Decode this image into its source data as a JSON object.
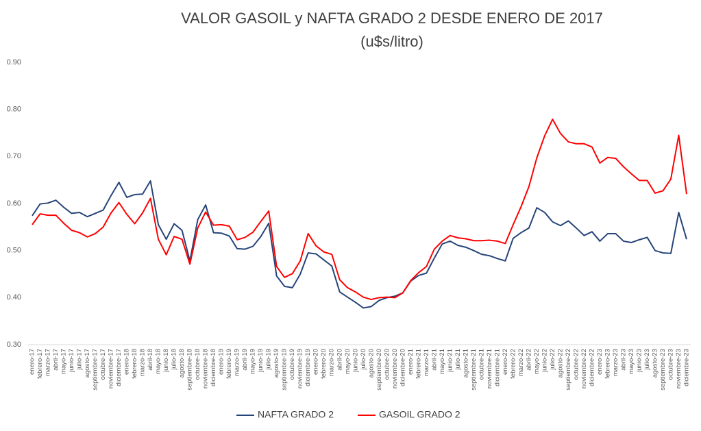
{
  "chart_data": {
    "type": "line",
    "title": "VALOR GASOIL y NAFTA GRADO 2 DESDE ENERO DE 2017",
    "subtitle": "(u$s/litro)",
    "categories": [
      "enero-17",
      "febrero-17",
      "marzo-17",
      "abril-17",
      "mayo-17",
      "junio-17",
      "julio-17",
      "agosto-17",
      "septiembre-17",
      "octubre-17",
      "noviembre-17",
      "diciembre-17",
      "enero-18",
      "febrero-18",
      "marzo-18",
      "abril-18",
      "mayo-18",
      "junio-18",
      "julio-18",
      "agosto-18",
      "septiembre-18",
      "octubre-18",
      "noviembre-18",
      "diciembre-18",
      "enero-19",
      "febrero-19",
      "marzo-19",
      "abril-19",
      "mayo-19",
      "junio-19",
      "julio-19",
      "agosto-19",
      "septiembre-19",
      "octubre-19",
      "noviembre-19",
      "diciembre-19",
      "enero-20",
      "febrero-20",
      "marzo-20",
      "abril-20",
      "mayo-20",
      "junio-20",
      "julio-20",
      "agosto-20",
      "septiembre-20",
      "octubre-20",
      "noviembre-20",
      "diciembre-20",
      "enero-21",
      "febrero-21",
      "marzo-21",
      "abril-21",
      "mayo-21",
      "junio-21",
      "julio-21",
      "agosto-21",
      "septiembre-21",
      "octubre-21",
      "noviembre-21",
      "diciembre-21",
      "enero-22",
      "febrero-22",
      "marzo-22",
      "abril-22",
      "mayo-22",
      "junio-22",
      "julio-22",
      "agosto-22",
      "septiembre-22",
      "octubre-22",
      "noviembre-22",
      "diciembre-22",
      "enero-23",
      "febrero-23",
      "marzo-23",
      "abril-23",
      "mayo-23",
      "junio-23",
      "julio-23",
      "agosto-23",
      "septiembre-23",
      "octubre-23",
      "noviembre-23",
      "diciembre-23"
    ],
    "series": [
      {
        "name": "NAFTA GRADO 2",
        "color": "#264478",
        "values": [
          0.574,
          0.599,
          0.601,
          0.607,
          0.592,
          0.579,
          0.581,
          0.572,
          0.579,
          0.586,
          0.617,
          0.645,
          0.613,
          0.619,
          0.62,
          0.648,
          0.555,
          0.524,
          0.557,
          0.543,
          0.478,
          0.566,
          0.597,
          0.538,
          0.537,
          0.531,
          0.504,
          0.503,
          0.509,
          0.53,
          0.558,
          0.446,
          0.424,
          0.421,
          0.45,
          0.495,
          0.493,
          0.48,
          0.467,
          0.412,
          0.401,
          0.39,
          0.378,
          0.381,
          0.394,
          0.4,
          0.403,
          0.41,
          0.435,
          0.447,
          0.452,
          0.484,
          0.514,
          0.52,
          0.511,
          0.507,
          0.5,
          0.492,
          0.489,
          0.483,
          0.478,
          0.526,
          0.538,
          0.548,
          0.591,
          0.581,
          0.561,
          0.553,
          0.563,
          0.548,
          0.532,
          0.54,
          0.52,
          0.536,
          0.536,
          0.52,
          0.517,
          0.523,
          0.528,
          0.5,
          0.495,
          0.494,
          0.581,
          0.524
        ]
      },
      {
        "name": "GASOIL GRADO 2",
        "color": "#ff0000",
        "values": [
          0.555,
          0.578,
          0.575,
          0.575,
          0.558,
          0.543,
          0.538,
          0.529,
          0.536,
          0.55,
          0.58,
          0.602,
          0.577,
          0.557,
          0.58,
          0.611,
          0.524,
          0.491,
          0.53,
          0.524,
          0.471,
          0.548,
          0.582,
          0.554,
          0.555,
          0.552,
          0.523,
          0.528,
          0.539,
          0.562,
          0.584,
          0.466,
          0.443,
          0.451,
          0.478,
          0.536,
          0.51,
          0.497,
          0.492,
          0.438,
          0.421,
          0.412,
          0.401,
          0.396,
          0.4,
          0.401,
          0.4,
          0.41,
          0.436,
          0.453,
          0.466,
          0.503,
          0.52,
          0.532,
          0.527,
          0.525,
          0.521,
          0.521,
          0.522,
          0.52,
          0.515,
          0.555,
          0.593,
          0.636,
          0.697,
          0.744,
          0.779,
          0.749,
          0.731,
          0.727,
          0.727,
          0.72,
          0.686,
          0.698,
          0.696,
          0.678,
          0.663,
          0.649,
          0.649,
          0.622,
          0.627,
          0.652,
          0.745,
          0.62
        ]
      }
    ],
    "ylim": [
      0.3,
      0.9
    ],
    "yticks": [
      {
        "value": 0.3,
        "label": "0.30"
      },
      {
        "value": 0.4,
        "label": "0.40"
      },
      {
        "value": 0.5,
        "label": "0.50"
      },
      {
        "value": 0.6,
        "label": "0.60"
      },
      {
        "value": 0.7,
        "label": "0.70"
      },
      {
        "value": 0.8,
        "label": "0.80"
      },
      {
        "value": 0.9,
        "label": "0.90"
      }
    ],
    "grid": false,
    "legend": "bottom"
  }
}
